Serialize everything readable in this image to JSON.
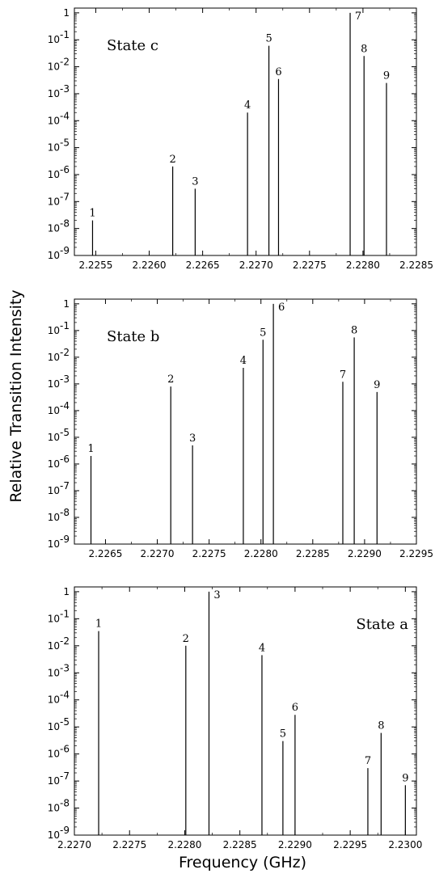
{
  "figure": {
    "ylabel": "Relative Transition Intensity",
    "xlabel": "Frequency (GHz)"
  },
  "chart_data": [
    {
      "type": "bar",
      "title": "State c",
      "title_position": "top-left",
      "ylog": true,
      "ylim": [
        1e-09,
        1.5
      ],
      "xlim": [
        2.2253,
        2.2285
      ],
      "xticks": [
        2.2255,
        2.226,
        2.2265,
        2.227,
        2.2275,
        2.228,
        2.2285
      ],
      "xtick_labels": [
        "2.2255",
        "2.2260",
        "2.2265",
        "2.2270",
        "2.2275",
        "2.2280",
        "2.2285"
      ],
      "yticks": [
        {
          "base": "10",
          "exp": "-9"
        },
        {
          "base": "10",
          "exp": "-8"
        },
        {
          "base": "10",
          "exp": "-7"
        },
        {
          "base": "10",
          "exp": "-6"
        },
        {
          "base": "10",
          "exp": "-5"
        },
        {
          "base": "10",
          "exp": "-4"
        },
        {
          "base": "10",
          "exp": "-3"
        },
        {
          "base": "10",
          "exp": "-2"
        },
        {
          "base": "10",
          "exp": "-1"
        },
        {
          "base": "1",
          "exp": ""
        }
      ],
      "lines": [
        {
          "label": "1",
          "x": 2.22547,
          "y": 2e-08
        },
        {
          "label": "2",
          "x": 2.22622,
          "y": 2e-06
        },
        {
          "label": "3",
          "x": 2.22643,
          "y": 3e-07
        },
        {
          "label": "4",
          "x": 2.22692,
          "y": 0.0002
        },
        {
          "label": "5",
          "x": 2.22712,
          "y": 0.06
        },
        {
          "label": "6",
          "x": 2.22721,
          "y": 0.0035
        },
        {
          "label": "7",
          "x": 2.22788,
          "y": 1.0
        },
        {
          "label": "8",
          "x": 2.22801,
          "y": 0.025
        },
        {
          "label": "9",
          "x": 2.22822,
          "y": 0.0025
        }
      ]
    },
    {
      "type": "bar",
      "title": "State b",
      "title_position": "top-left",
      "ylog": true,
      "ylim": [
        1e-09,
        1.5
      ],
      "xlim": [
        2.2262,
        2.2295
      ],
      "xticks": [
        2.2265,
        2.227,
        2.2275,
        2.228,
        2.2285,
        2.229,
        2.2295
      ],
      "xtick_labels": [
        "2.2265",
        "2.2270",
        "2.2275",
        "2.2280",
        "2.2285",
        "2.2290",
        "2.2295"
      ],
      "yticks": [
        {
          "base": "10",
          "exp": "-9"
        },
        {
          "base": "10",
          "exp": "-8"
        },
        {
          "base": "10",
          "exp": "-7"
        },
        {
          "base": "10",
          "exp": "-6"
        },
        {
          "base": "10",
          "exp": "-5"
        },
        {
          "base": "10",
          "exp": "-4"
        },
        {
          "base": "10",
          "exp": "-3"
        },
        {
          "base": "10",
          "exp": "-2"
        },
        {
          "base": "10",
          "exp": "-1"
        },
        {
          "base": "1",
          "exp": ""
        }
      ],
      "lines": [
        {
          "label": "1",
          "x": 2.22636,
          "y": 2e-06
        },
        {
          "label": "2",
          "x": 2.22713,
          "y": 0.0008
        },
        {
          "label": "3",
          "x": 2.22734,
          "y": 5e-06
        },
        {
          "label": "4",
          "x": 2.22783,
          "y": 0.004
        },
        {
          "label": "5",
          "x": 2.22802,
          "y": 0.045
        },
        {
          "label": "6",
          "x": 2.22812,
          "y": 1.0
        },
        {
          "label": "7",
          "x": 2.22879,
          "y": 0.0012
        },
        {
          "label": "8",
          "x": 2.2289,
          "y": 0.055
        },
        {
          "label": "9",
          "x": 2.22912,
          "y": 0.0005
        }
      ]
    },
    {
      "type": "bar",
      "title": "State a",
      "title_position": "top-right",
      "ylog": true,
      "ylim": [
        1e-09,
        1.5
      ],
      "xlim": [
        2.227,
        2.2301
      ],
      "xticks": [
        2.227,
        2.2275,
        2.228,
        2.2285,
        2.229,
        2.2295,
        2.23
      ],
      "xtick_labels": [
        "2.2270",
        "2.2275",
        "2.2280",
        "2.2285",
        "2.2290",
        "2.2295",
        "2.2300"
      ],
      "yticks": [
        {
          "base": "10",
          "exp": "-9"
        },
        {
          "base": "10",
          "exp": "-8"
        },
        {
          "base": "10",
          "exp": "-7"
        },
        {
          "base": "10",
          "exp": "-6"
        },
        {
          "base": "10",
          "exp": "-5"
        },
        {
          "base": "10",
          "exp": "-4"
        },
        {
          "base": "10",
          "exp": "-3"
        },
        {
          "base": "10",
          "exp": "-2"
        },
        {
          "base": "10",
          "exp": "-1"
        },
        {
          "base": "1",
          "exp": ""
        }
      ],
      "lines": [
        {
          "label": "1",
          "x": 2.22722,
          "y": 0.035
        },
        {
          "label": "2",
          "x": 2.22801,
          "y": 0.01
        },
        {
          "label": "3",
          "x": 2.22822,
          "y": 1.0
        },
        {
          "label": "4",
          "x": 2.2287,
          "y": 0.0045
        },
        {
          "label": "5",
          "x": 2.22889,
          "y": 3e-06
        },
        {
          "label": "6",
          "x": 2.229,
          "y": 2.8e-05
        },
        {
          "label": "7",
          "x": 2.22966,
          "y": 3e-07
        },
        {
          "label": "8",
          "x": 2.22978,
          "y": 6e-06
        },
        {
          "label": "9",
          "x": 2.23,
          "y": 7e-08
        }
      ]
    }
  ]
}
